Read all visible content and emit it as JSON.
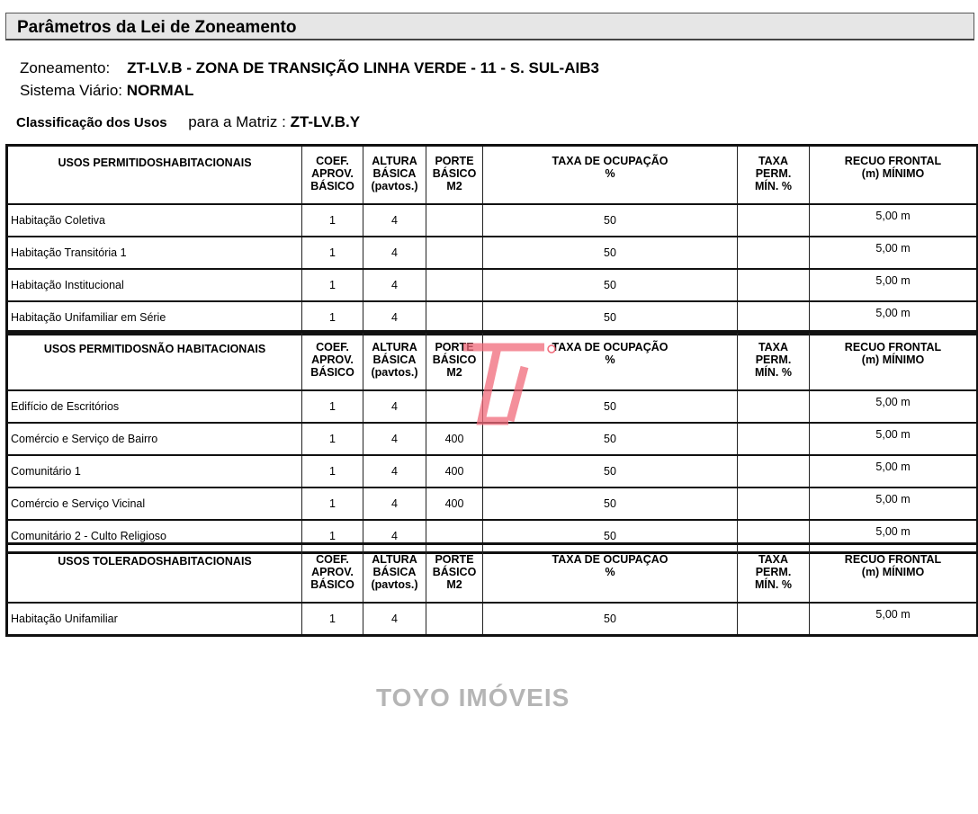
{
  "header": {
    "title": "Parâmetros da Lei de Zoneamento"
  },
  "info": {
    "zoneamento_label": "Zoneamento:",
    "zoneamento_value": "ZT-LV.B - ZONA DE TRANSIÇÃO LINHA VERDE - 11 - S. SUL-AIB3",
    "sistema_label": "Sistema Viário:",
    "sistema_value": "NORMAL",
    "classificacao_label": "Classificação dos Usos",
    "matriz_label": "para a Matriz :",
    "matriz_value": "ZT-LV.B.Y"
  },
  "columns": {
    "coef": [
      "COEF.",
      "APROV.",
      "BÁSICO"
    ],
    "altura": [
      "ALTURA",
      "BÁSICA",
      "(pavtos.)"
    ],
    "porte": [
      "PORTE",
      "BÁSICO",
      "M2"
    ],
    "taxa": [
      "TAXA DE OCUPAÇÃO",
      "%"
    ],
    "perm": [
      "TAXA",
      "PERM.",
      "MÍN. %"
    ],
    "recuo": [
      "RECUO FRONTAL",
      "(m) MÍNIMO"
    ]
  },
  "tables": [
    {
      "title": "USOS PERMITIDOSHABITACIONAIS",
      "rows": [
        [
          "Habitação Coletiva",
          "1",
          "4",
          "",
          "50",
          "",
          "5,00 m"
        ],
        [
          "Habitação Transitória 1",
          "1",
          "4",
          "",
          "50",
          "",
          "5,00 m"
        ],
        [
          "Habitação Institucional",
          "1",
          "4",
          "",
          "50",
          "",
          "5,00 m"
        ],
        [
          "Habitação Unifamiliar em Série",
          "1",
          "4",
          "",
          "50",
          "",
          "5,00 m"
        ]
      ]
    },
    {
      "title": "USOS PERMITIDOSNÃO HABITACIONAIS",
      "rows": [
        [
          "Edifício de Escritórios",
          "1",
          "4",
          "",
          "50",
          "",
          "5,00 m"
        ],
        [
          "Comércio e Serviço de Bairro",
          "1",
          "4",
          "400",
          "50",
          "",
          "5,00 m"
        ],
        [
          "Comunitário 1",
          "1",
          "4",
          "400",
          "50",
          "",
          "5,00 m"
        ],
        [
          "Comércio e Serviço Vicinal",
          "1",
          "4",
          "400",
          "50",
          "",
          "5,00 m"
        ],
        [
          "Comunitário 2 - Culto Religioso",
          "1",
          "4",
          "",
          "50",
          "",
          "5,00 m"
        ]
      ]
    },
    {
      "title": "USOS TOLERADOSHABITACIONAIS",
      "rows": [
        [
          "Habitação Unifamiliar",
          "1",
          "4",
          "",
          "50",
          "",
          "5,00 m"
        ]
      ]
    }
  ],
  "watermark": {
    "text": "TOYO IMÓVEIS",
    "logo_color": "#f06a7a",
    "text_color": "#969696"
  }
}
